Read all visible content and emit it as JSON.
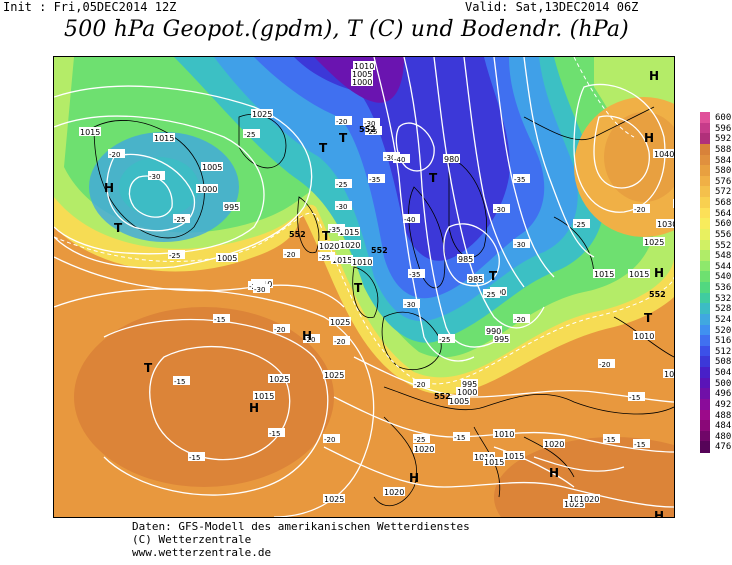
{
  "header": {
    "init": "Init : Fri,05DEC2014 12Z",
    "valid": "Valid: Sat,13DEC2014 06Z",
    "title": "500 hPa Geopot.(gpdm), T (C) und Bodendr. (hPa)"
  },
  "map": {
    "pressure_labels": [
      "1010",
      "1005",
      "1000",
      "1025",
      "1015",
      "1015",
      "1005",
      "1000",
      "995",
      "1005",
      "1010",
      "1020",
      "1015",
      "1015",
      "1010",
      "1020",
      "1025",
      "1025",
      "1025",
      "1015",
      "1020",
      "1025",
      "1020",
      "1010",
      "1015",
      "1005",
      "1000",
      "995",
      "990",
      "985",
      "980",
      "985",
      "990",
      "995",
      "1015",
      "1020",
      "1010",
      "1015",
      "1040",
      "1035",
      "1030",
      "1025",
      "1015",
      "1010",
      "1010",
      "1025",
      "1025",
      "1020",
      "1020"
    ],
    "temp_labels": [
      "-20",
      "-25",
      "-30",
      "-25",
      "-25",
      "-25",
      "-30",
      "-20",
      "-25",
      "-30",
      "-40",
      "-35",
      "-30",
      "-35",
      "-25",
      "-20",
      "-15",
      "-15",
      "-15",
      "-15",
      "-20",
      "-20",
      "-25",
      "-30",
      "-35",
      "-30",
      "-25",
      "-20",
      "-20",
      "-15",
      "-25",
      "-20",
      "-15",
      "-25",
      "-30",
      "-35",
      "-40",
      "-30",
      "-20",
      "-20",
      "-15",
      "-15",
      "-20",
      "-25"
    ],
    "height_labels": [
      "552",
      "552",
      "552",
      "552",
      "552"
    ],
    "high_markers": [
      "H",
      "H",
      "H",
      "H",
      "H",
      "H",
      "H",
      "H",
      "H",
      "H"
    ],
    "low_markers": [
      "T",
      "T",
      "T",
      "T",
      "T",
      "T",
      "T",
      "T",
      "T",
      "T"
    ]
  },
  "legend": {
    "levels": [
      "600",
      "596",
      "592",
      "588",
      "584",
      "580",
      "576",
      "572",
      "568",
      "564",
      "560",
      "556",
      "552",
      "548",
      "544",
      "540",
      "536",
      "532",
      "528",
      "524",
      "520",
      "516",
      "512",
      "508",
      "504",
      "500",
      "496",
      "492",
      "488",
      "484",
      "480",
      "476"
    ],
    "colors": [
      "#e0509a",
      "#c63c8a",
      "#b0307a",
      "#d8823a",
      "#e0903e",
      "#e8a040",
      "#f0b046",
      "#f4c04c",
      "#f8d050",
      "#fce058",
      "#f8ec5c",
      "#e8f060",
      "#d0f064",
      "#b0ec68",
      "#8ee86c",
      "#6ee070",
      "#52d880",
      "#40cca0",
      "#3cbcc4",
      "#40a8e0",
      "#4090f0",
      "#4070f0",
      "#3c50e8",
      "#3c38d8",
      "#4820c8",
      "#5a14b8",
      "#7010a8",
      "#8a0c9a",
      "#9c0a8a",
      "#8a0878",
      "#700668",
      "#560458"
    ]
  },
  "footer": {
    "line1": "Daten: GFS-Modell des amerikanischen Wetterdienstes",
    "line2": "(C) Wetterzentrale",
    "line3": "www.wetterzentrale.de"
  }
}
